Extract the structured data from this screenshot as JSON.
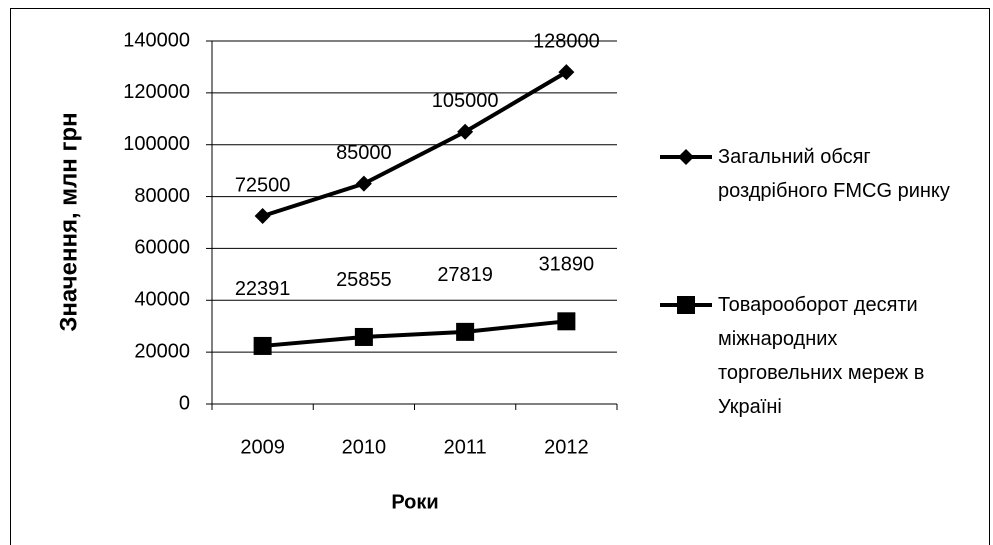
{
  "chart_data": {
    "type": "line",
    "x_label": "Роки",
    "y_label": "Значення, млн грн",
    "categories": [
      "2009",
      "2010",
      "2011",
      "2012"
    ],
    "series": [
      {
        "name": "Загальний обсяг роздрібного FMCG ринку",
        "color": "#000000",
        "marker": "diamond",
        "values": [
          72500,
          85000,
          105000,
          128000
        ]
      },
      {
        "name": "Товарооборот десяти міжнародних торговельних мереж в Україні",
        "color": "#000000",
        "marker": "square",
        "values": [
          22391,
          25855,
          27819,
          31890
        ]
      }
    ],
    "ylim": [
      0,
      140000
    ],
    "yticks": [
      0,
      20000,
      40000,
      60000,
      80000,
      100000,
      120000,
      140000
    ],
    "grid": true,
    "legend": "right"
  }
}
